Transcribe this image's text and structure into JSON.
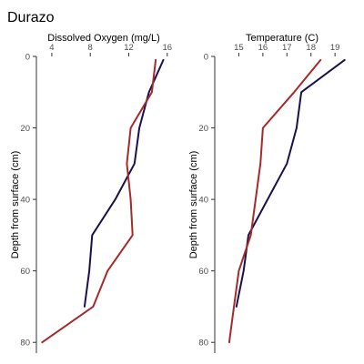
{
  "title": "Durazo",
  "series_colors": [
    "#1d0f4b",
    "#a52a2a"
  ],
  "chart_data": [
    {
      "type": "line",
      "xlabel": "Dissolved Oxygen (mg/L)",
      "ylabel": "Depth from surface (cm)",
      "x_axis_position": "top",
      "y_reversed": true,
      "grid": false,
      "legend": "none",
      "xlim": [
        2.4,
        16.4
      ],
      "ylim": [
        0,
        83
      ],
      "xticks": [
        4,
        8,
        12,
        16
      ],
      "yticks": [
        0,
        20,
        40,
        60,
        80
      ],
      "series": [
        {
          "color": "#1d0f4b",
          "points": [
            [
              15.6,
              1
            ],
            [
              14.1,
              10
            ],
            [
              13.1,
              20
            ],
            [
              12.6,
              30
            ],
            [
              10.6,
              40
            ],
            [
              8.2,
              50
            ],
            [
              7.9,
              60
            ],
            [
              7.4,
              70
            ]
          ]
        },
        {
          "color": "#a52a2a",
          "points": [
            [
              14.8,
              1
            ],
            [
              14.4,
              10
            ],
            [
              12.2,
              20
            ],
            [
              11.8,
              30
            ],
            [
              12.2,
              40
            ],
            [
              12.4,
              50
            ],
            [
              9.8,
              60
            ],
            [
              8.3,
              70
            ],
            [
              3.0,
              80
            ]
          ]
        }
      ]
    },
    {
      "type": "line",
      "xlabel": "Temperature (C)",
      "ylabel": "Depth from surface (cm)",
      "x_axis_position": "top",
      "y_reversed": true,
      "grid": false,
      "legend": "none",
      "xlim": [
        14.0,
        19.6
      ],
      "ylim": [
        0,
        83
      ],
      "xticks": [
        15,
        16,
        17,
        18,
        19
      ],
      "yticks": [
        0,
        20,
        40,
        60,
        80
      ],
      "series": [
        {
          "color": "#1d0f4b",
          "points": [
            [
              19.4,
              1
            ],
            [
              17.6,
              10
            ],
            [
              17.4,
              20
            ],
            [
              17.0,
              30
            ],
            [
              16.2,
              40
            ],
            [
              15.4,
              50
            ],
            [
              15.2,
              60
            ],
            [
              14.9,
              70
            ]
          ]
        },
        {
          "color": "#a52a2a",
          "points": [
            [
              18.4,
              1
            ],
            [
              17.3,
              10
            ],
            [
              16.0,
              20
            ],
            [
              15.9,
              30
            ],
            [
              15.7,
              40
            ],
            [
              15.5,
              50
            ],
            [
              15.0,
              60
            ],
            [
              14.8,
              70
            ],
            [
              14.6,
              80
            ]
          ]
        }
      ]
    }
  ]
}
